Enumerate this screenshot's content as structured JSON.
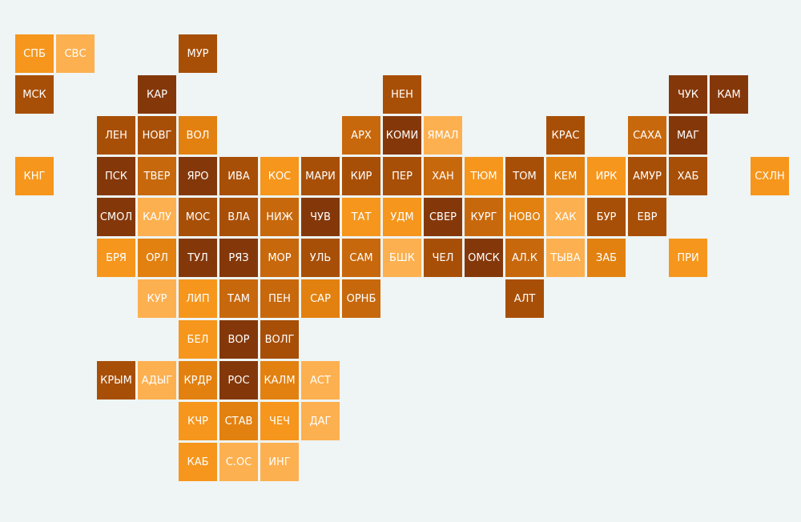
{
  "palette": {
    "c1": "#fdb04f",
    "c2": "#f6961c",
    "c3": "#e28110",
    "c4": "#c8680c",
    "c5": "#a84f07",
    "c6": "#84380a"
  },
  "regions": [
    {
      "label": "СПБ",
      "col": 0,
      "row": 0,
      "shade": "c2"
    },
    {
      "label": "СВС",
      "col": 1,
      "row": 0,
      "shade": "c1"
    },
    {
      "label": "МУР",
      "col": 4,
      "row": 0,
      "shade": "c5"
    },
    {
      "label": "МСК",
      "col": 0,
      "row": 1,
      "shade": "c5"
    },
    {
      "label": "КАР",
      "col": 3,
      "row": 1,
      "shade": "c6"
    },
    {
      "label": "НЕН",
      "col": 9,
      "row": 1,
      "shade": "c5"
    },
    {
      "label": "ЧУК",
      "col": 16,
      "row": 1,
      "shade": "c6"
    },
    {
      "label": "КАМ",
      "col": 17,
      "row": 1,
      "shade": "c6"
    },
    {
      "label": "ЛЕН",
      "col": 2,
      "row": 2,
      "shade": "c5"
    },
    {
      "label": "НОВГ",
      "col": 3,
      "row": 2,
      "shade": "c5"
    },
    {
      "label": "ВОЛ",
      "col": 4,
      "row": 2,
      "shade": "c3"
    },
    {
      "label": "АРХ",
      "col": 8,
      "row": 2,
      "shade": "c4"
    },
    {
      "label": "КОМИ",
      "col": 9,
      "row": 2,
      "shade": "c6"
    },
    {
      "label": "ЯМАЛ",
      "col": 10,
      "row": 2,
      "shade": "c1"
    },
    {
      "label": "КРАС",
      "col": 13,
      "row": 2,
      "shade": "c5"
    },
    {
      "label": "САХА",
      "col": 15,
      "row": 2,
      "shade": "c4"
    },
    {
      "label": "МАГ",
      "col": 16,
      "row": 2,
      "shade": "c6"
    },
    {
      "label": "КНГ",
      "col": 0,
      "row": 3,
      "shade": "c2"
    },
    {
      "label": "ПСК",
      "col": 2,
      "row": 3,
      "shade": "c6"
    },
    {
      "label": "ТВЕР",
      "col": 3,
      "row": 3,
      "shade": "c4"
    },
    {
      "label": "ЯРО",
      "col": 4,
      "row": 3,
      "shade": "c6"
    },
    {
      "label": "ИВА",
      "col": 5,
      "row": 3,
      "shade": "c5"
    },
    {
      "label": "КОС",
      "col": 6,
      "row": 3,
      "shade": "c2"
    },
    {
      "label": "МАРИ",
      "col": 7,
      "row": 3,
      "shade": "c5"
    },
    {
      "label": "КИР",
      "col": 8,
      "row": 3,
      "shade": "c5"
    },
    {
      "label": "ПЕР",
      "col": 9,
      "row": 3,
      "shade": "c5"
    },
    {
      "label": "ХАН",
      "col": 10,
      "row": 3,
      "shade": "c4"
    },
    {
      "label": "ТЮМ",
      "col": 11,
      "row": 3,
      "shade": "c2"
    },
    {
      "label": "ТОМ",
      "col": 12,
      "row": 3,
      "shade": "c5"
    },
    {
      "label": "КЕМ",
      "col": 13,
      "row": 3,
      "shade": "c3"
    },
    {
      "label": "ИРК",
      "col": 14,
      "row": 3,
      "shade": "c2"
    },
    {
      "label": "АМУР",
      "col": 15,
      "row": 3,
      "shade": "c5"
    },
    {
      "label": "ХАБ",
      "col": 16,
      "row": 3,
      "shade": "c5"
    },
    {
      "label": "СХЛН",
      "col": 18,
      "row": 3,
      "shade": "c2"
    },
    {
      "label": "СМОЛ",
      "col": 2,
      "row": 4,
      "shade": "c6"
    },
    {
      "label": "КАЛУ",
      "col": 3,
      "row": 4,
      "shade": "c1"
    },
    {
      "label": "МОС",
      "col": 4,
      "row": 4,
      "shade": "c5"
    },
    {
      "label": "ВЛА",
      "col": 5,
      "row": 4,
      "shade": "c5"
    },
    {
      "label": "НИЖ",
      "col": 6,
      "row": 4,
      "shade": "c4"
    },
    {
      "label": "ЧУВ",
      "col": 7,
      "row": 4,
      "shade": "c6"
    },
    {
      "label": "ТАТ",
      "col": 8,
      "row": 4,
      "shade": "c2"
    },
    {
      "label": "УДМ",
      "col": 9,
      "row": 4,
      "shade": "c2"
    },
    {
      "label": "СВЕР",
      "col": 10,
      "row": 4,
      "shade": "c6"
    },
    {
      "label": "КУРГ",
      "col": 11,
      "row": 4,
      "shade": "c4"
    },
    {
      "label": "НОВО",
      "col": 12,
      "row": 4,
      "shade": "c3"
    },
    {
      "label": "ХАК",
      "col": 13,
      "row": 4,
      "shade": "c1"
    },
    {
      "label": "БУР",
      "col": 14,
      "row": 4,
      "shade": "c5"
    },
    {
      "label": "ЕВР",
      "col": 15,
      "row": 4,
      "shade": "c5"
    },
    {
      "label": "БРЯ",
      "col": 2,
      "row": 5,
      "shade": "c2"
    },
    {
      "label": "ОРЛ",
      "col": 3,
      "row": 5,
      "shade": "c3"
    },
    {
      "label": "ТУЛ",
      "col": 4,
      "row": 5,
      "shade": "c6"
    },
    {
      "label": "РЯЗ",
      "col": 5,
      "row": 5,
      "shade": "c6"
    },
    {
      "label": "МОР",
      "col": 6,
      "row": 5,
      "shade": "c4"
    },
    {
      "label": "УЛЬ",
      "col": 7,
      "row": 5,
      "shade": "c5"
    },
    {
      "label": "САМ",
      "col": 8,
      "row": 5,
      "shade": "c4"
    },
    {
      "label": "БШК",
      "col": 9,
      "row": 5,
      "shade": "c1"
    },
    {
      "label": "ЧЕЛ",
      "col": 10,
      "row": 5,
      "shade": "c5"
    },
    {
      "label": "ОМСК",
      "col": 11,
      "row": 5,
      "shade": "c6"
    },
    {
      "label": "АЛ.К",
      "col": 12,
      "row": 5,
      "shade": "c4"
    },
    {
      "label": "ТЫВА",
      "col": 13,
      "row": 5,
      "shade": "c1"
    },
    {
      "label": "ЗАБ",
      "col": 14,
      "row": 5,
      "shade": "c3"
    },
    {
      "label": "ПРИ",
      "col": 16,
      "row": 5,
      "shade": "c2"
    },
    {
      "label": "КУР",
      "col": 3,
      "row": 6,
      "shade": "c1"
    },
    {
      "label": "ЛИП",
      "col": 4,
      "row": 6,
      "shade": "c2"
    },
    {
      "label": "ТАМ",
      "col": 5,
      "row": 6,
      "shade": "c4"
    },
    {
      "label": "ПЕН",
      "col": 6,
      "row": 6,
      "shade": "c4"
    },
    {
      "label": "САР",
      "col": 7,
      "row": 6,
      "shade": "c3"
    },
    {
      "label": "ОРНБ",
      "col": 8,
      "row": 6,
      "shade": "c4"
    },
    {
      "label": "АЛТ",
      "col": 12,
      "row": 6,
      "shade": "c5"
    },
    {
      "label": "БЕЛ",
      "col": 4,
      "row": 7,
      "shade": "c2"
    },
    {
      "label": "ВОР",
      "col": 5,
      "row": 7,
      "shade": "c6"
    },
    {
      "label": "ВОЛГ",
      "col": 6,
      "row": 7,
      "shade": "c5"
    },
    {
      "label": "КРЫМ",
      "col": 2,
      "row": 8,
      "shade": "c5"
    },
    {
      "label": "АДЫГ",
      "col": 3,
      "row": 8,
      "shade": "c1"
    },
    {
      "label": "КРДР",
      "col": 4,
      "row": 8,
      "shade": "c3"
    },
    {
      "label": "РОС",
      "col": 5,
      "row": 8,
      "shade": "c6"
    },
    {
      "label": "КАЛМ",
      "col": 6,
      "row": 8,
      "shade": "c3"
    },
    {
      "label": "АСТ",
      "col": 7,
      "row": 8,
      "shade": "c1"
    },
    {
      "label": "КЧР",
      "col": 4,
      "row": 9,
      "shade": "c2"
    },
    {
      "label": "СТАВ",
      "col": 5,
      "row": 9,
      "shade": "c3"
    },
    {
      "label": "ЧЕЧ",
      "col": 6,
      "row": 9,
      "shade": "c2"
    },
    {
      "label": "ДАГ",
      "col": 7,
      "row": 9,
      "shade": "c1"
    },
    {
      "label": "КАБ",
      "col": 4,
      "row": 10,
      "shade": "c2"
    },
    {
      "label": "С.ОС",
      "col": 5,
      "row": 10,
      "shade": "c1"
    },
    {
      "label": "ИНГ",
      "col": 6,
      "row": 10,
      "shade": "c1"
    }
  ]
}
